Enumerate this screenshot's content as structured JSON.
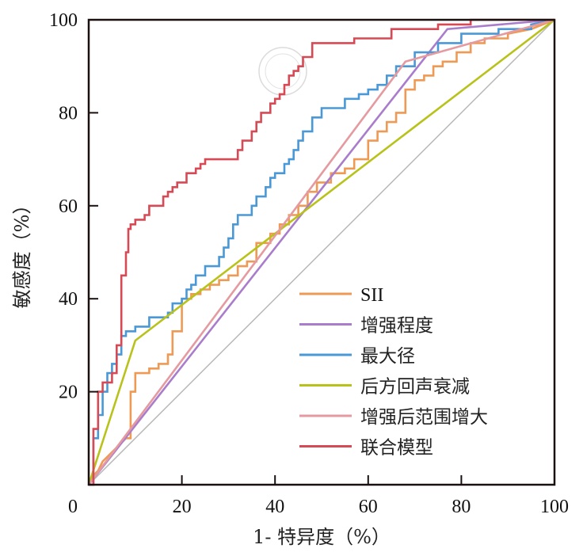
{
  "chart_data": {
    "type": "line",
    "title": "",
    "xlabel": "1- 特异度（%）",
    "ylabel": "敏感度（%）",
    "xlim": [
      0,
      100
    ],
    "ylim": [
      0,
      100
    ],
    "xticks": [
      "0",
      "20",
      "40",
      "60",
      "80",
      "100"
    ],
    "yticks": [
      "20",
      "40",
      "60",
      "80",
      "100"
    ],
    "grid": false,
    "legend_position": "bottom-right",
    "reference_line": {
      "name": "diagonal",
      "x": [
        0,
        100
      ],
      "y": [
        0,
        100
      ],
      "color": "#b8b8b8"
    },
    "series": [
      {
        "name": "SII",
        "color": "#ee9a55",
        "step": true,
        "x": [
          0,
          1,
          2,
          3,
          4,
          5,
          6,
          7,
          8,
          9,
          9,
          10,
          10,
          13,
          13,
          15,
          15,
          17,
          17,
          18,
          18,
          20,
          20,
          22,
          22,
          24,
          24,
          26,
          26,
          28,
          28,
          30,
          30,
          32,
          32,
          34,
          34,
          36,
          36,
          39,
          39,
          41,
          41,
          43,
          43,
          45,
          45,
          47,
          47,
          49,
          49,
          52,
          52,
          55,
          55,
          57,
          57,
          60,
          60,
          62,
          62,
          64,
          64,
          66,
          66,
          68,
          68,
          70,
          70,
          72,
          72,
          74,
          74,
          76,
          76,
          79,
          79,
          82,
          82,
          85,
          85,
          90,
          90,
          95,
          100
        ],
        "y": [
          0,
          2,
          3,
          5,
          6,
          7,
          8,
          9,
          10,
          10,
          20,
          20,
          24,
          24,
          25,
          25,
          26,
          26,
          28,
          28,
          33,
          33,
          40,
          40,
          41,
          41,
          42,
          42,
          43,
          43,
          44,
          44,
          45,
          45,
          47,
          47,
          48,
          48,
          52,
          52,
          54,
          54,
          56,
          56,
          58,
          58,
          60,
          60,
          63,
          63,
          65,
          65,
          67,
          67,
          68,
          68,
          70,
          70,
          74,
          74,
          76,
          76,
          78,
          78,
          80,
          80,
          85,
          85,
          87,
          87,
          88,
          88,
          90,
          90,
          91,
          91,
          93,
          93,
          95,
          95,
          96,
          96,
          97,
          98,
          100
        ]
      },
      {
        "name": "增强程度",
        "color": "#a97ccc",
        "step": false,
        "x": [
          0,
          77,
          100
        ],
        "y": [
          0,
          98,
          100
        ]
      },
      {
        "name": "最大径",
        "color": "#4a98d6",
        "step": true,
        "x": [
          0,
          1,
          1,
          2,
          2,
          3,
          3,
          4,
          4,
          5,
          5,
          6,
          6,
          7,
          7,
          8,
          8,
          10,
          10,
          13,
          13,
          17,
          17,
          18,
          18,
          20,
          20,
          21,
          21,
          22,
          22,
          23,
          23,
          25,
          25,
          28,
          28,
          29,
          29,
          30,
          30,
          31,
          31,
          32,
          32,
          35,
          35,
          36,
          36,
          38,
          38,
          39,
          39,
          40,
          40,
          42,
          42,
          43,
          43,
          44,
          44,
          45,
          45,
          46,
          46,
          48,
          48,
          50,
          50,
          55,
          55,
          58,
          58,
          60,
          60,
          62,
          62,
          64,
          64,
          66,
          66,
          70,
          70,
          75,
          75,
          80,
          80,
          88,
          88,
          95,
          95,
          100
        ],
        "y": [
          0,
          0,
          10,
          10,
          15,
          15,
          20,
          20,
          24,
          24,
          26,
          26,
          28,
          28,
          32,
          32,
          33,
          33,
          34,
          34,
          36,
          36,
          37,
          37,
          39,
          39,
          40,
          40,
          42,
          42,
          43,
          43,
          45,
          45,
          47,
          47,
          49,
          49,
          51,
          51,
          53,
          53,
          56,
          56,
          58,
          58,
          60,
          60,
          62,
          62,
          64,
          64,
          66,
          66,
          67,
          67,
          69,
          69,
          70,
          70,
          72,
          72,
          74,
          74,
          76,
          76,
          79,
          79,
          81,
          81,
          83,
          83,
          84,
          84,
          85,
          85,
          86,
          86,
          88,
          88,
          90,
          90,
          93,
          93,
          95,
          95,
          97,
          97,
          98,
          98,
          99,
          100
        ]
      },
      {
        "name": "后方回声衰减",
        "color": "#b8c21a",
        "step": false,
        "x": [
          0,
          10,
          100
        ],
        "y": [
          0,
          31,
          100
        ]
      },
      {
        "name": "增强后范围增大",
        "color": "#e59aa0",
        "step": false,
        "x": [
          0,
          68,
          100
        ],
        "y": [
          0,
          91,
          100
        ]
      },
      {
        "name": "联合模型",
        "color": "#d64a55",
        "step": true,
        "x": [
          0,
          1,
          1,
          2,
          2,
          3,
          3,
          5,
          5,
          6,
          6,
          7,
          7,
          8,
          8,
          8.5,
          8.5,
          9,
          9,
          10,
          10,
          12,
          12,
          13,
          13,
          16,
          16,
          17,
          17,
          18,
          18,
          19,
          19,
          21,
          21,
          23,
          23,
          24,
          24,
          25,
          25,
          32,
          32,
          33,
          33,
          35,
          35,
          36,
          36,
          37,
          37,
          39,
          39,
          40,
          40,
          41,
          41,
          42,
          42,
          43,
          43,
          44,
          44,
          45,
          45,
          46,
          46,
          48,
          48,
          57,
          57,
          65,
          65,
          75,
          75,
          82,
          82,
          100
        ],
        "y": [
          0,
          0,
          12,
          12,
          20,
          20,
          22,
          22,
          24,
          24,
          30,
          30,
          45,
          45,
          50,
          50,
          55,
          55,
          56,
          56,
          57,
          57,
          58,
          58,
          60,
          60,
          62,
          62,
          63,
          63,
          64,
          64,
          65,
          65,
          67,
          67,
          68,
          68,
          69,
          69,
          70,
          70,
          72,
          72,
          74,
          74,
          76,
          76,
          78,
          78,
          80,
          80,
          82,
          82,
          83,
          83,
          84,
          84,
          86,
          86,
          88,
          88,
          89,
          89,
          90,
          90,
          92,
          92,
          95,
          95,
          96,
          96,
          98,
          98,
          99,
          99,
          100,
          100
        ]
      }
    ]
  },
  "legend": {
    "items": [
      "SII",
      "增强程度",
      "最大径",
      "后方回声衰减",
      "增强后范围增大",
      "联合模型"
    ]
  },
  "axes": {
    "x_zero_label": "0"
  }
}
